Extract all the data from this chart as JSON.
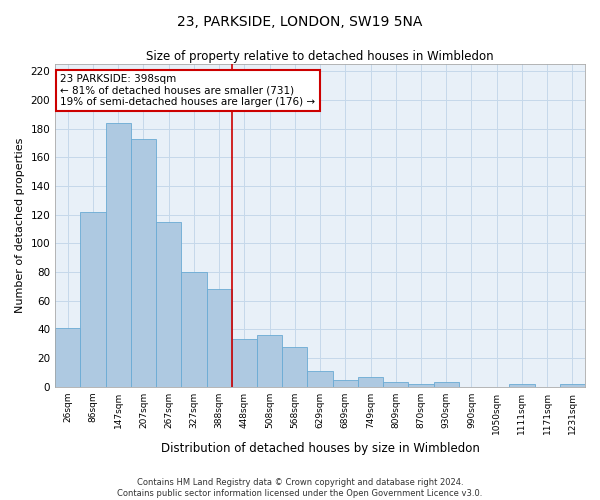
{
  "title": "23, PARKSIDE, LONDON, SW19 5NA",
  "subtitle": "Size of property relative to detached houses in Wimbledon",
  "xlabel": "Distribution of detached houses by size in Wimbledon",
  "ylabel": "Number of detached properties",
  "footer_line1": "Contains HM Land Registry data © Crown copyright and database right 2024.",
  "footer_line2": "Contains public sector information licensed under the Open Government Licence v3.0.",
  "categories": [
    "26sqm",
    "86sqm",
    "147sqm",
    "207sqm",
    "267sqm",
    "327sqm",
    "388sqm",
    "448sqm",
    "508sqm",
    "568sqm",
    "629sqm",
    "689sqm",
    "749sqm",
    "809sqm",
    "870sqm",
    "930sqm",
    "990sqm",
    "1050sqm",
    "1111sqm",
    "1171sqm",
    "1231sqm"
  ],
  "values": [
    41,
    122,
    184,
    173,
    115,
    80,
    68,
    33,
    36,
    28,
    11,
    5,
    7,
    3,
    2,
    3,
    0,
    0,
    2,
    0,
    2
  ],
  "bar_color": "#aec9e1",
  "bar_edge_color": "#6aaad4",
  "grid_color": "#c5d8ea",
  "background_color": "#e8f0f8",
  "property_line_x": 6.5,
  "annotation_title": "23 PARKSIDE: 398sqm",
  "annotation_line1": "← 81% of detached houses are smaller (731)",
  "annotation_line2": "19% of semi-detached houses are larger (176) →",
  "annotation_box_color": "#ffffff",
  "annotation_box_edge": "#cc0000",
  "property_line_color": "#cc0000",
  "ylim": [
    0,
    225
  ],
  "yticks": [
    0,
    20,
    40,
    60,
    80,
    100,
    120,
    140,
    160,
    180,
    200,
    220
  ]
}
